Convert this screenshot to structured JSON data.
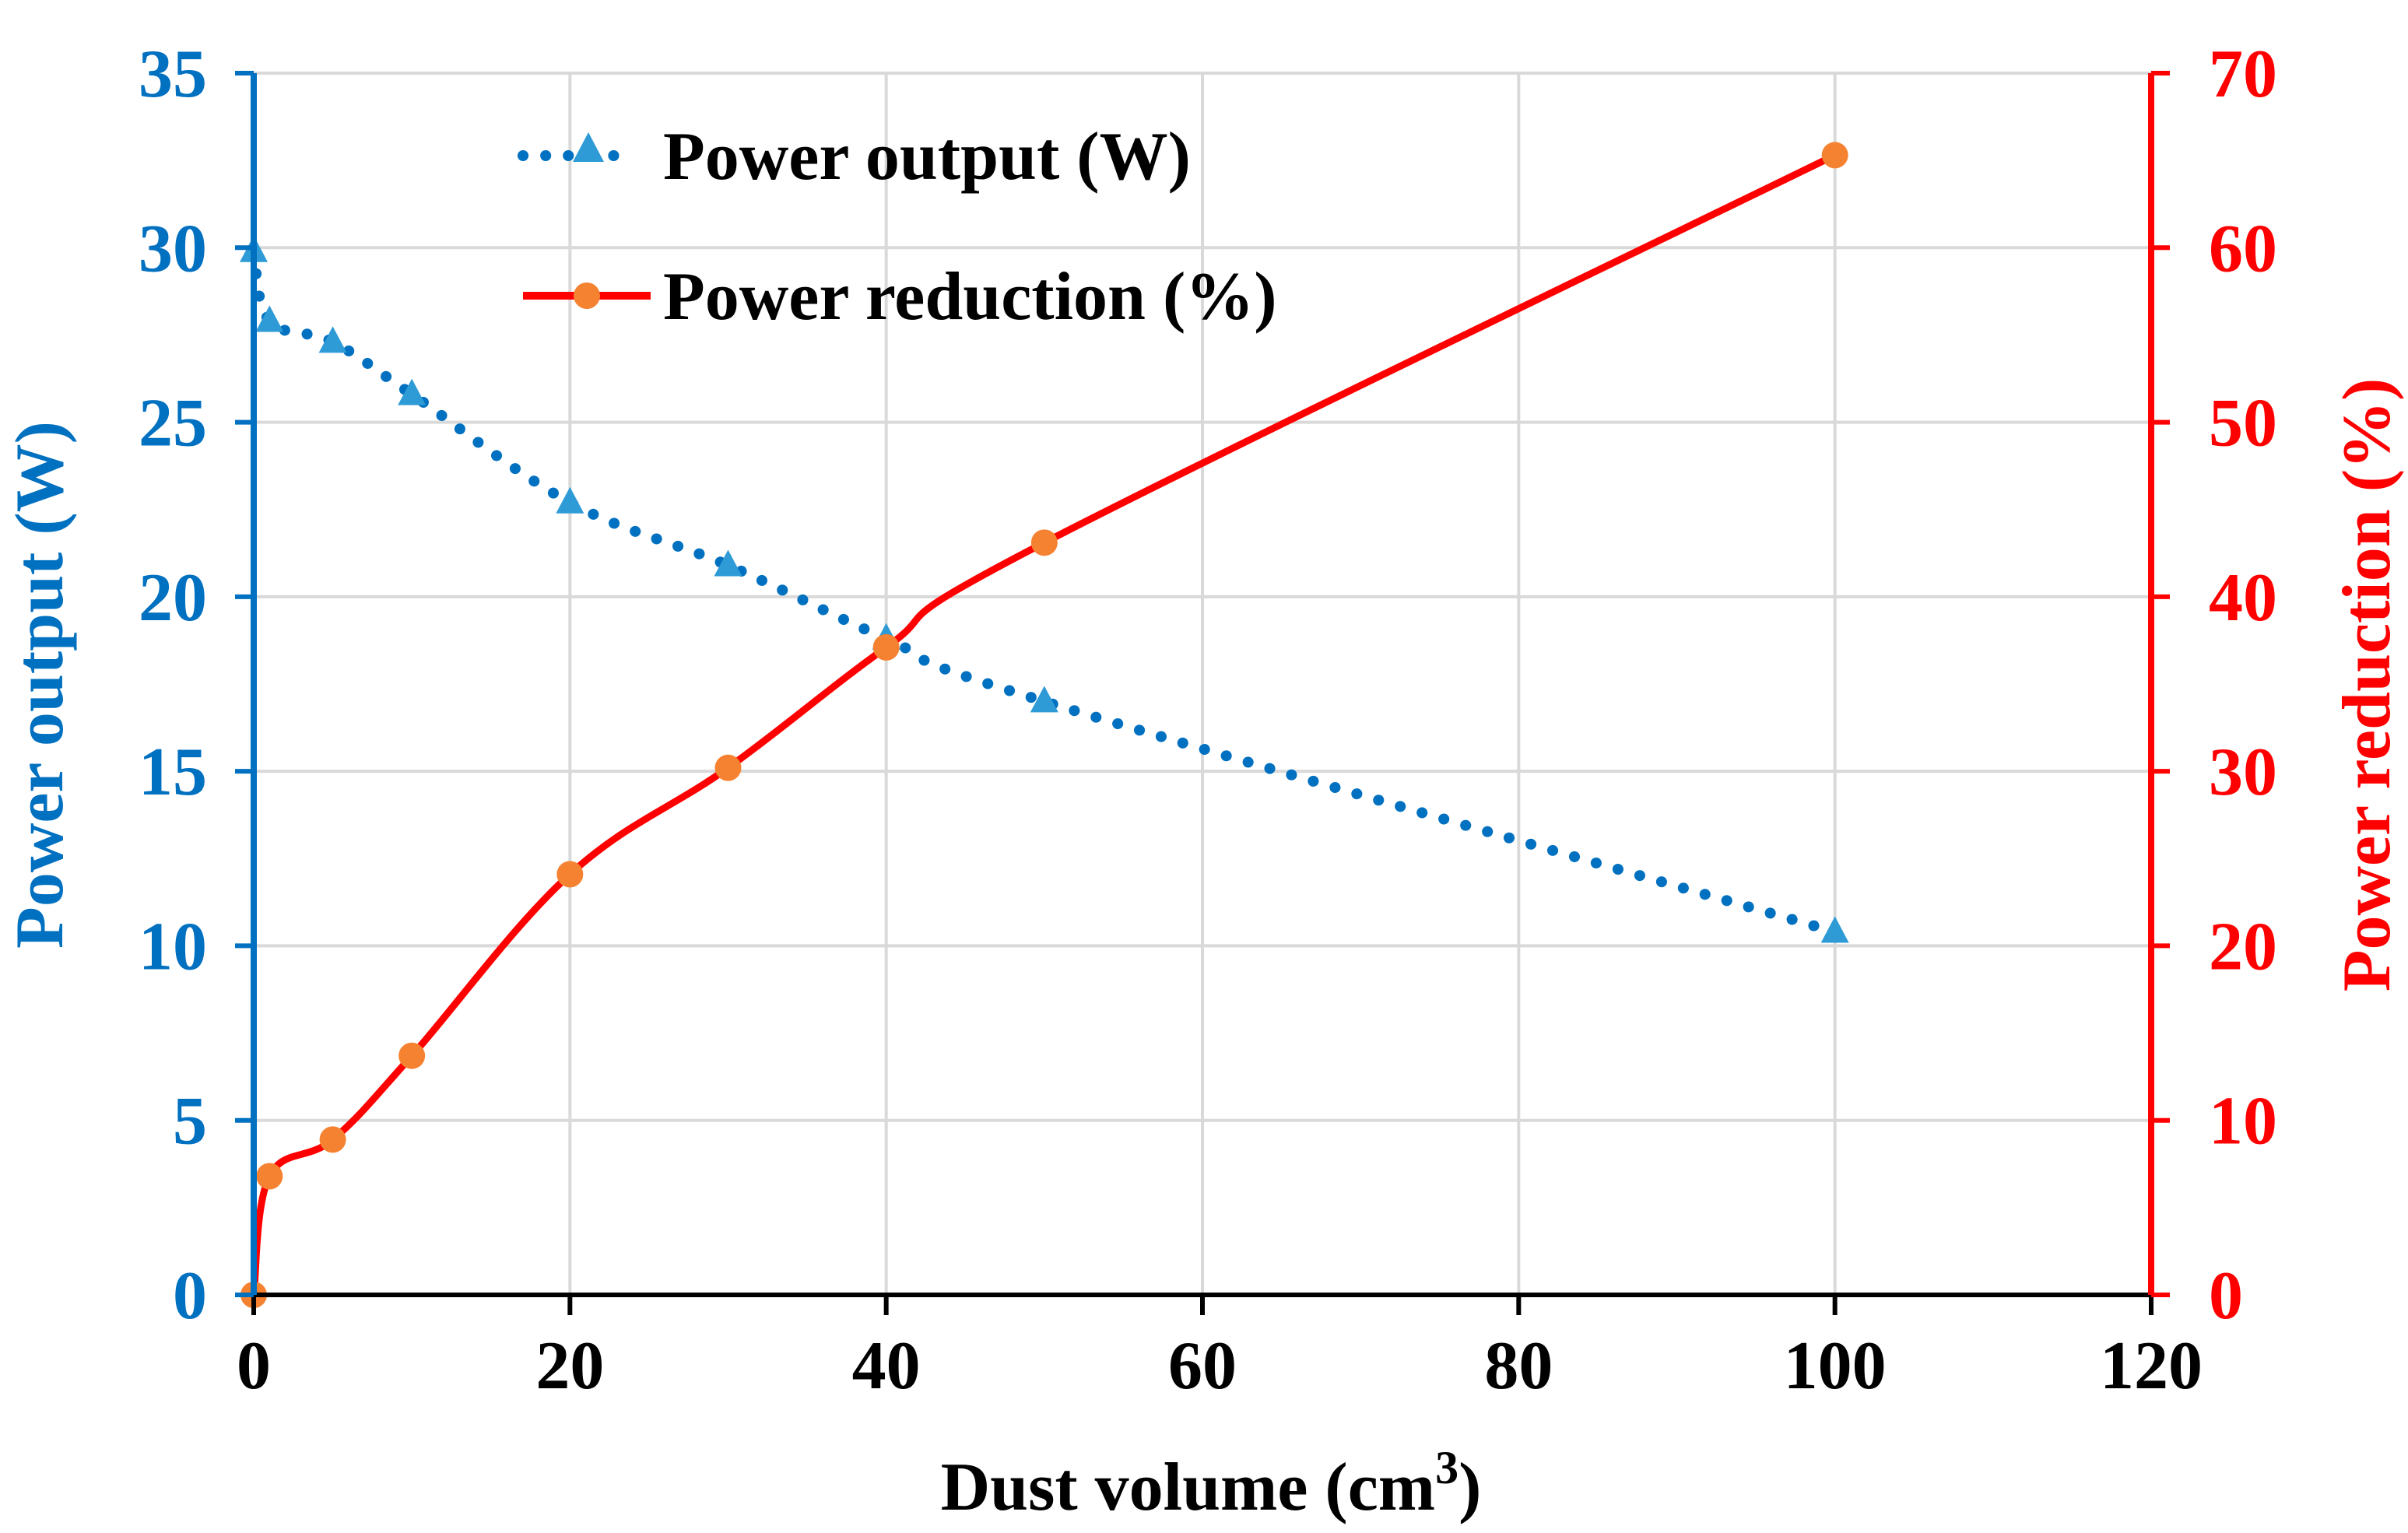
{
  "chart_data": {
    "type": "line",
    "title": "",
    "xlabel": "Dust volume (cm",
    "xlabel_superscript": "3",
    "xlabel_suffix": ")",
    "xlim": [
      0,
      120
    ],
    "xticks": [
      0,
      20,
      40,
      60,
      80,
      100,
      120
    ],
    "grid": true,
    "legend_position": "top-left",
    "y_left": {
      "label": "Power output (W)",
      "ylim": [
        0,
        35
      ],
      "ticks": [
        0,
        5,
        10,
        15,
        20,
        25,
        30,
        35
      ],
      "color": "#0070C0"
    },
    "y_right": {
      "label": "Power reduction (%)",
      "ylim": [
        0,
        70
      ],
      "ticks": [
        0,
        10,
        20,
        30,
        40,
        50,
        60,
        70
      ],
      "color": "#FF0000"
    },
    "series": [
      {
        "name": "Power output (W)",
        "axis": "left",
        "style": "dotted",
        "marker": "triangle",
        "line_color": "#0070C0",
        "marker_color": "#2E9BD6",
        "x": [
          0,
          1,
          5,
          10,
          20,
          30,
          40,
          50,
          100
        ],
        "values": [
          29.9,
          27.9,
          27.3,
          25.8,
          22.7,
          20.9,
          18.8,
          17.0,
          10.4
        ]
      },
      {
        "name": "Power reduction (%)",
        "axis": "right",
        "style": "solid",
        "marker": "circle",
        "line_color": "#FF0000",
        "marker_color": "#F58231",
        "x": [
          0,
          1,
          5,
          10,
          20,
          30,
          40,
          50,
          100
        ],
        "values": [
          0,
          6.8,
          8.9,
          13.7,
          24.1,
          30.2,
          37.1,
          43.1,
          65.3
        ]
      }
    ]
  }
}
